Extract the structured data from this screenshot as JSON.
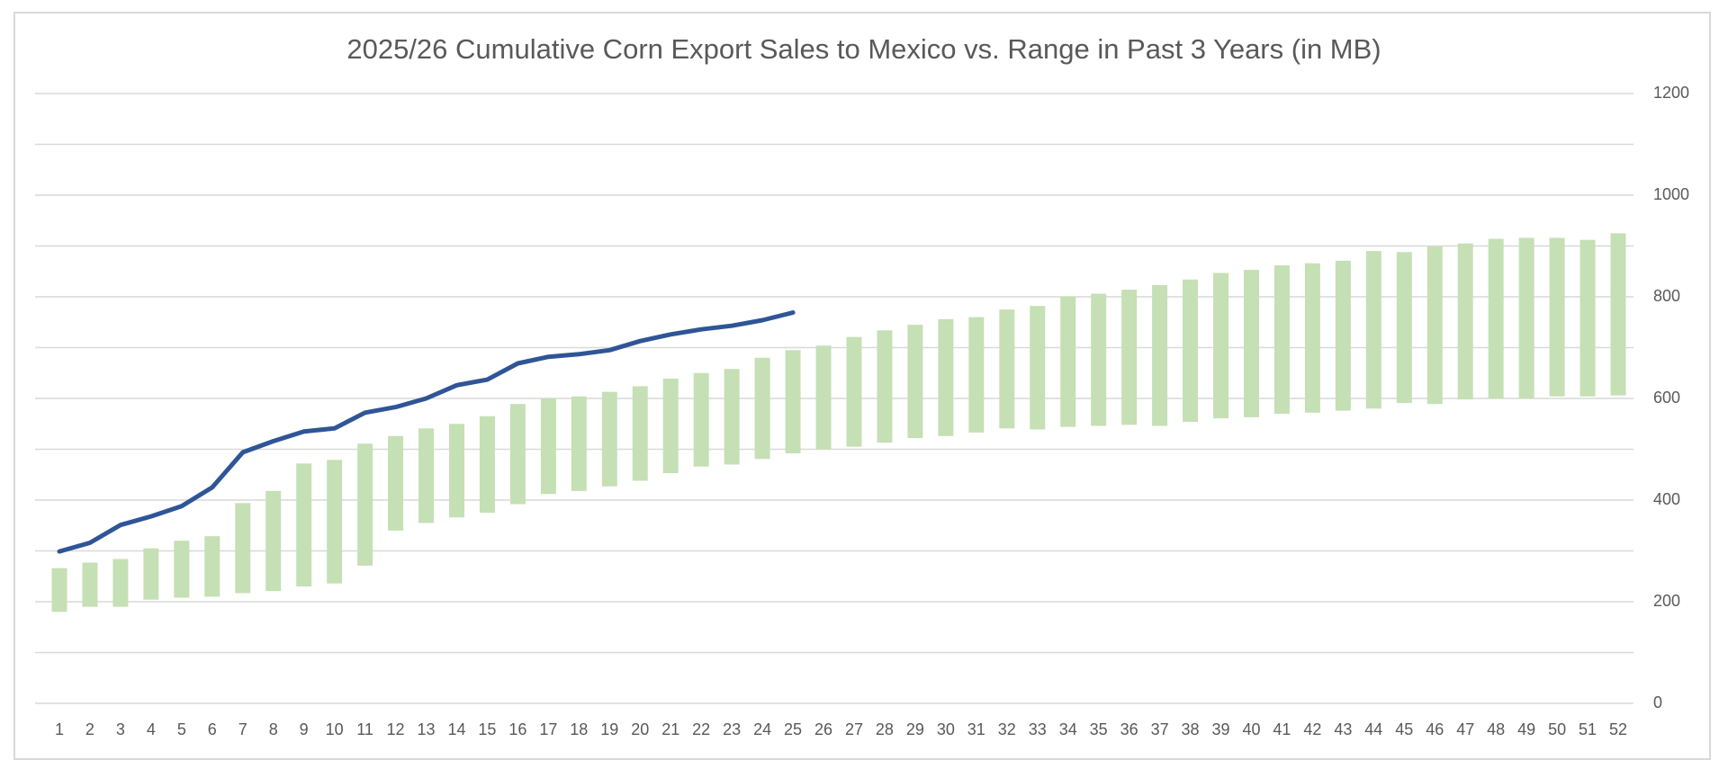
{
  "chart_data": {
    "type": "bar",
    "title": "2025/26 Cumulative Corn Export Sales to Mexico vs. Range in Past 3 Years (in MB)",
    "categories": [
      "1",
      "2",
      "3",
      "4",
      "5",
      "6",
      "7",
      "8",
      "9",
      "10",
      "11",
      "12",
      "13",
      "14",
      "15",
      "16",
      "17",
      "18",
      "19",
      "20",
      "21",
      "22",
      "23",
      "24",
      "25",
      "26",
      "27",
      "28",
      "29",
      "30",
      "31",
      "32",
      "33",
      "34",
      "35",
      "36",
      "37",
      "38",
      "39",
      "40",
      "41",
      "42",
      "43",
      "44",
      "45",
      "46",
      "47",
      "48",
      "49",
      "50",
      "51",
      "52"
    ],
    "series": [
      {
        "type": "range",
        "color": "#c5e0b4",
        "low": [
          180,
          190,
          190,
          204,
          208,
          210,
          217,
          221,
          230,
          236,
          271,
          340,
          355,
          366,
          375,
          392,
          412,
          418,
          427,
          438,
          453,
          466,
          470,
          481,
          492,
          500,
          505,
          513,
          522,
          526,
          533,
          541,
          539,
          544,
          546,
          548,
          546,
          554,
          561,
          563,
          570,
          572,
          576,
          580,
          591,
          589,
          598,
          600,
          600,
          604,
          604,
          606
        ],
        "high": [
          266,
          277,
          284,
          305,
          320,
          329,
          394,
          418,
          472,
          479,
          511,
          526,
          541,
          550,
          565,
          589,
          600,
          604,
          613,
          624,
          639,
          650,
          658,
          680,
          695,
          704,
          721,
          734,
          745,
          756,
          760,
          775,
          782,
          801,
          806,
          814,
          823,
          834,
          847,
          853,
          862,
          866,
          871,
          890,
          888,
          899,
          905,
          914,
          916,
          916,
          912,
          925
        ]
      },
      {
        "type": "line",
        "color": "#2f5597",
        "values": [
          299,
          316,
          351,
          368,
          388,
          425,
          494,
          516,
          535,
          541,
          572,
          583,
          600,
          626,
          637,
          669,
          682,
          687,
          695,
          713,
          726,
          736,
          743,
          754,
          769,
          null,
          null,
          null,
          null,
          null,
          null,
          null,
          null,
          null,
          null,
          null,
          null,
          null,
          null,
          null,
          null,
          null,
          null,
          null,
          null,
          null,
          null,
          null,
          null,
          null,
          null,
          null
        ]
      }
    ],
    "ylim": [
      0,
      1200
    ],
    "yticks": [
      0,
      200,
      400,
      600,
      800,
      1000,
      1200
    ],
    "minor_yticks": [
      100,
      300,
      500,
      700,
      900,
      1100
    ],
    "y_axis_side": "right",
    "grid": true
  }
}
